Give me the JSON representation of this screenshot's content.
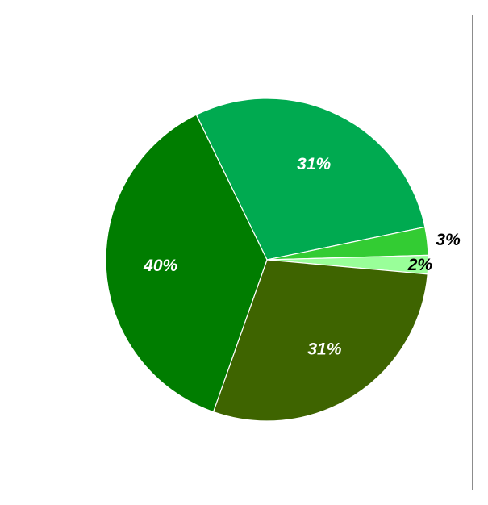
{
  "chart_data": {
    "type": "pie",
    "start_angle_deg": 334,
    "slices": [
      {
        "label": "31%",
        "value": 31,
        "color": "#00AA50",
        "label_color": "#ffffff"
      },
      {
        "label": "3%",
        "value": 3,
        "color": "#33CC33",
        "label_color": "#000000"
      },
      {
        "label": "2%",
        "value": 2,
        "color": "#99FF99",
        "label_color": "#000000"
      },
      {
        "label": "31%",
        "value": 31,
        "color": "#3E6400",
        "label_color": "#ffffff"
      },
      {
        "label": "40%",
        "value": 40,
        "color": "#007D00",
        "label_color": "#ffffff"
      }
    ],
    "slice_border_color": "#ffffff"
  }
}
